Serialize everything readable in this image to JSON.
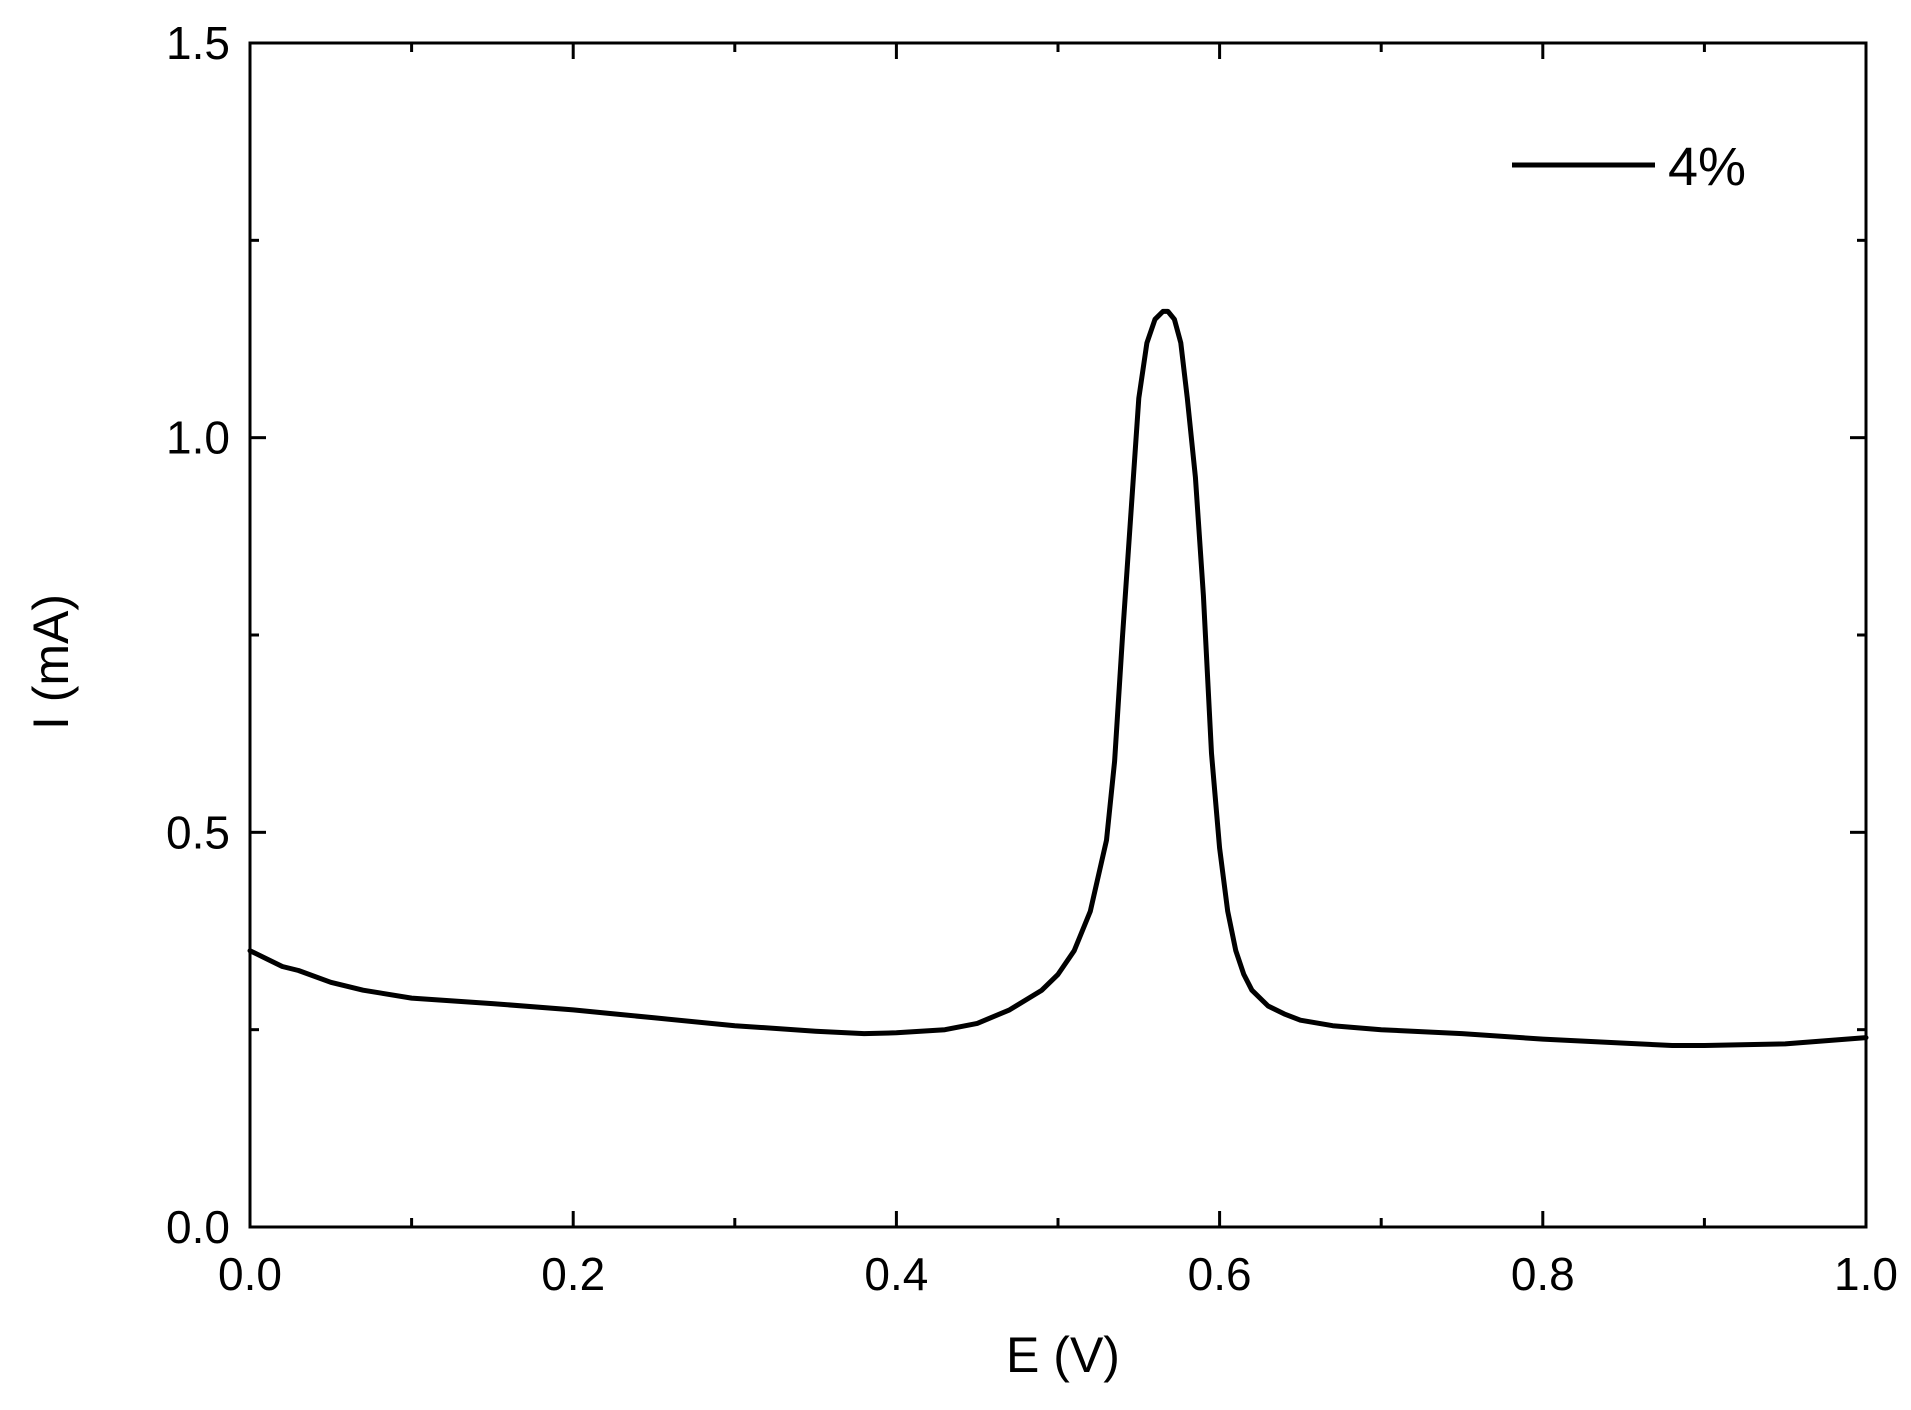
{
  "chart_data": {
    "type": "line",
    "xlabel": "E (V)",
    "ylabel": "I (mA)",
    "xlim": [
      0.0,
      1.0
    ],
    "ylim": [
      0.0,
      1.5
    ],
    "x_ticks": [
      "0.0",
      "0.2",
      "0.4",
      "0.6",
      "0.8",
      "1.0"
    ],
    "y_ticks": [
      "0.0",
      "0.5",
      "1.0",
      "1.5"
    ],
    "grid": false,
    "legend_position": "top-right",
    "colors": {
      "line": "#000000",
      "axis": "#000000"
    },
    "series": [
      {
        "name": "4%",
        "x": [
          0.0,
          0.01,
          0.02,
          0.03,
          0.05,
          0.07,
          0.1,
          0.15,
          0.2,
          0.25,
          0.3,
          0.35,
          0.38,
          0.4,
          0.43,
          0.45,
          0.47,
          0.49,
          0.5,
          0.51,
          0.52,
          0.53,
          0.535,
          0.54,
          0.545,
          0.55,
          0.555,
          0.56,
          0.565,
          0.568,
          0.572,
          0.576,
          0.58,
          0.585,
          0.59,
          0.595,
          0.6,
          0.605,
          0.61,
          0.615,
          0.62,
          0.63,
          0.64,
          0.65,
          0.67,
          0.7,
          0.75,
          0.8,
          0.85,
          0.88,
          0.9,
          0.95,
          1.0
        ],
        "y": [
          0.35,
          0.34,
          0.33,
          0.325,
          0.31,
          0.3,
          0.29,
          0.283,
          0.275,
          0.265,
          0.255,
          0.248,
          0.245,
          0.246,
          0.25,
          0.258,
          0.275,
          0.3,
          0.32,
          0.35,
          0.4,
          0.49,
          0.59,
          0.75,
          0.9,
          1.05,
          1.12,
          1.15,
          1.16,
          1.16,
          1.15,
          1.12,
          1.05,
          0.95,
          0.8,
          0.6,
          0.48,
          0.4,
          0.35,
          0.32,
          0.3,
          0.28,
          0.27,
          0.262,
          0.255,
          0.25,
          0.245,
          0.238,
          0.233,
          0.23,
          0.23,
          0.232,
          0.24
        ]
      }
    ]
  }
}
